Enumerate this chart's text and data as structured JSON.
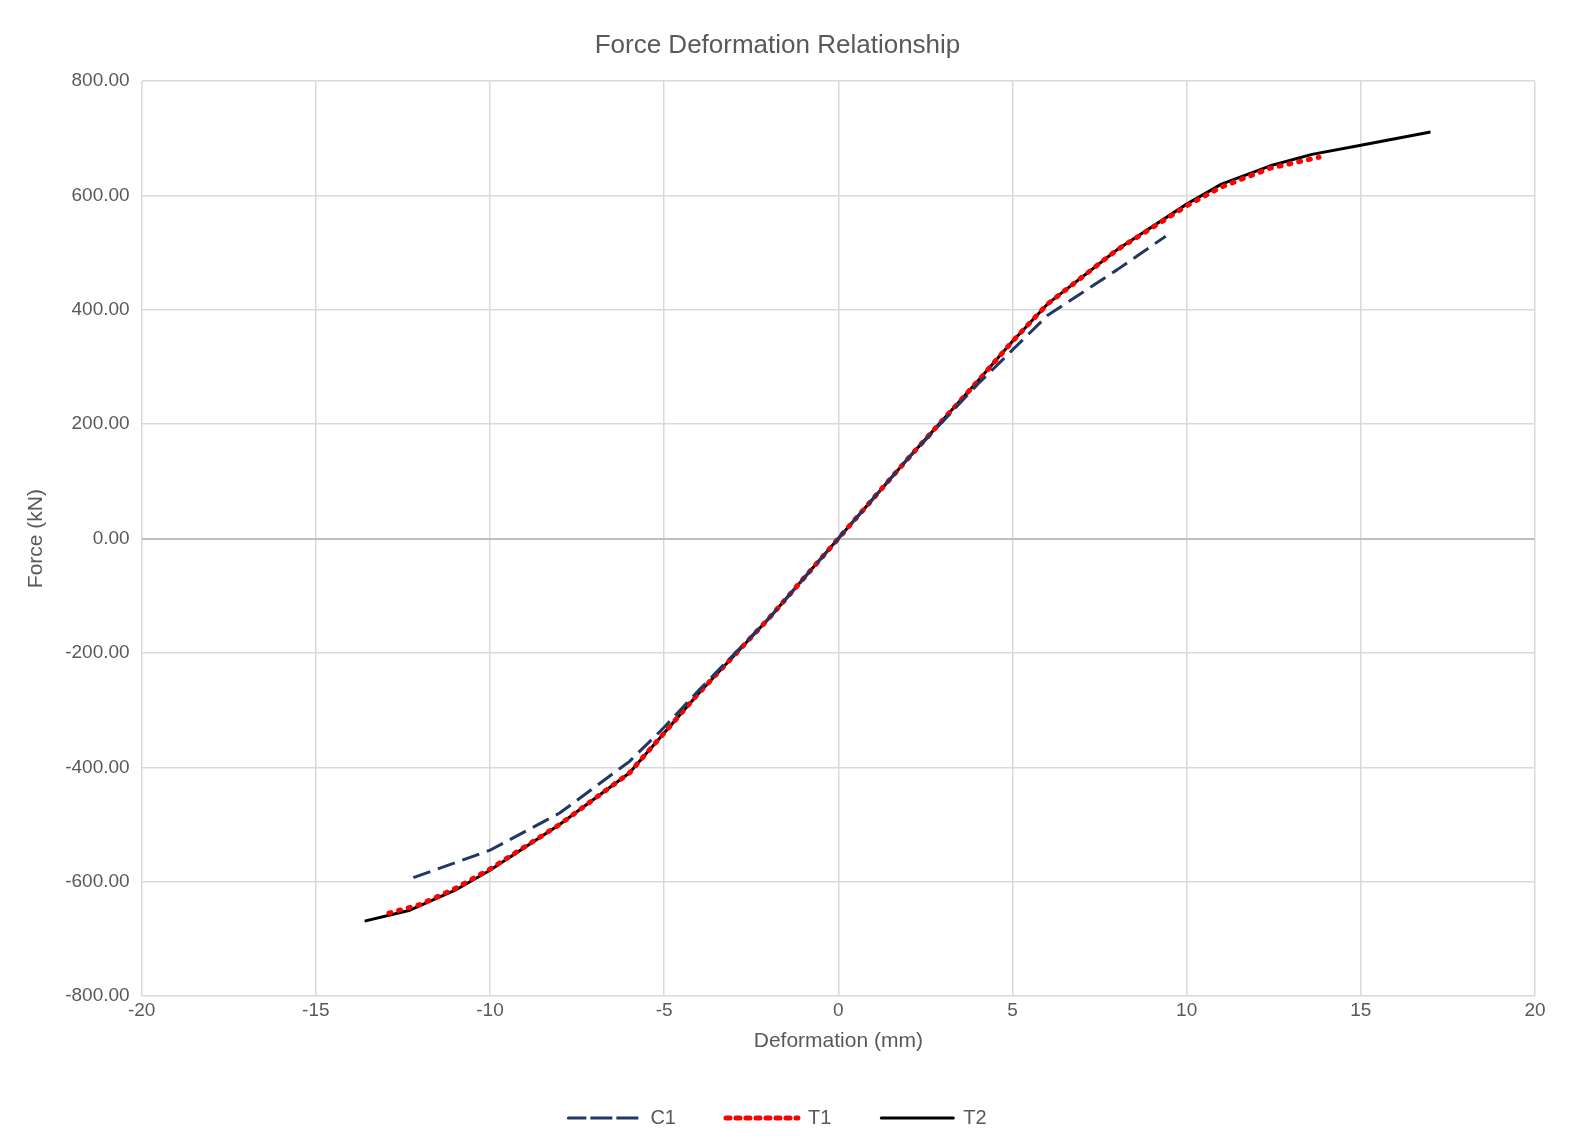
{
  "chart_data": {
    "type": "line",
    "title": "Force Deformation Relationship",
    "xlabel": "Deformation (mm)",
    "ylabel": "Force (kN)",
    "xlim": [
      -20,
      20
    ],
    "xticks": [
      -20,
      -15,
      -10,
      -5,
      0,
      5,
      10,
      15,
      20
    ],
    "ylim": [
      -800,
      800
    ],
    "yticks": [
      {
        "value": -800,
        "label": "-800.00"
      },
      {
        "value": -600,
        "label": "-600.00"
      },
      {
        "value": -400,
        "label": "-400.00"
      },
      {
        "value": -200,
        "label": "-200.00"
      },
      {
        "value": 0,
        "label": "0.00"
      },
      {
        "value": 200,
        "label": "200.00"
      },
      {
        "value": 400,
        "label": "400.00"
      },
      {
        "value": 600,
        "label": "600.00"
      },
      {
        "value": 800,
        "label": "800.00"
      }
    ],
    "grid": true,
    "legend": "bottom",
    "marker": "none",
    "series": [
      {
        "name": "C1",
        "color": "#203864",
        "line_style": "dashed",
        "x": [
          -12.2,
          -10,
          -8,
          -6,
          -5,
          -4,
          -2,
          0,
          2,
          4,
          5,
          6,
          8,
          9.4
        ],
        "values": [
          -593,
          -545,
          -480,
          -390,
          -330,
          -265,
          -140,
          0,
          140,
          270,
          330,
          390,
          470,
          529
        ]
      },
      {
        "name": "T1",
        "color": "#ff0000",
        "line_style": "dotted",
        "x": [
          -12.9,
          -12,
          -11,
          -10,
          -8,
          -6,
          -5,
          -4,
          -2,
          0,
          2,
          4,
          5,
          6,
          8,
          10,
          11,
          12.4,
          13.8
        ],
        "values": [
          -655,
          -640,
          -612,
          -578,
          -500,
          -410,
          -340,
          -270,
          -140,
          0,
          140,
          275,
          345,
          410,
          505,
          582,
          615,
          648,
          667
        ]
      },
      {
        "name": "T2",
        "color": "#000000",
        "line_style": "solid",
        "x": [
          -13.6,
          -12.3,
          -11,
          -10,
          -8,
          -6,
          -5,
          -4,
          -2,
          0,
          2,
          4,
          5,
          6,
          8,
          10,
          11,
          12.4,
          13.6,
          15,
          17
        ],
        "values": [
          -669,
          -650,
          -615,
          -580,
          -500,
          -410,
          -340,
          -270,
          -140,
          0,
          140,
          275,
          345,
          410,
          505,
          585,
          620,
          652,
          672,
          688,
          711
        ]
      }
    ]
  }
}
